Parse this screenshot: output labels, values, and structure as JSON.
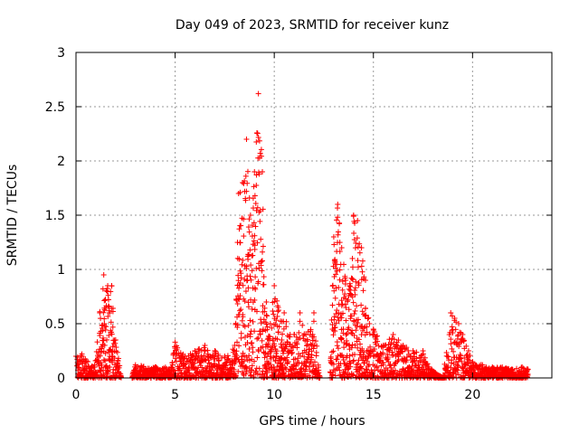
{
  "chart_data": {
    "type": "scatter",
    "title": "Day 049 of 2023, SRMTID for receiver kunz",
    "xlabel": "GPS time / hours",
    "ylabel": "SRMTID / TECUs",
    "xlim": [
      0,
      24
    ],
    "ylim": [
      0,
      3
    ],
    "xticks": [
      0,
      5,
      10,
      15,
      20
    ],
    "xtick_labels": [
      "0",
      "5",
      "10",
      "15",
      "20"
    ],
    "yticks": [
      0,
      0.5,
      1,
      1.5,
      2,
      2.5,
      3
    ],
    "ytick_labels": [
      "0",
      "0.5",
      "1",
      "1.5",
      "2",
      "2.5",
      "3"
    ],
    "grid": true,
    "marker": "+",
    "color": "#ff0000",
    "series": [
      {
        "name": "SRMTID",
        "description": "estimated envelope of plotted points (hours, TECU)",
        "envelope_x": [
          0,
          0.3,
          0.6,
          0.9,
          1.2,
          1.4,
          1.6,
          1.8,
          2.0,
          2.3,
          2.8,
          3.0,
          4.0,
          4.8,
          5.0,
          5.5,
          6.0,
          6.5,
          7.0,
          7.5,
          8.0,
          8.2,
          8.4,
          8.6,
          8.8,
          9.0,
          9.2,
          9.4,
          9.6,
          9.8,
          10.0,
          10.2,
          10.5,
          10.8,
          11.0,
          11.3,
          11.6,
          12.0,
          12.3,
          12.8,
          13.0,
          13.2,
          13.4,
          13.6,
          13.8,
          14.0,
          14.2,
          14.4,
          14.6,
          14.8,
          15.0,
          15.5,
          16.0,
          16.5,
          17.0,
          17.5,
          17.8,
          18.5,
          18.9,
          19.1,
          19.3,
          19.5,
          19.8,
          20.0,
          20.5,
          21.0,
          21.5,
          22.0,
          22.5,
          22.8
        ],
        "envelope_y": [
          0.2,
          0.22,
          0.15,
          0.1,
          0.6,
          0.95,
          0.85,
          0.85,
          0.35,
          0.0,
          0.0,
          0.12,
          0.1,
          0.1,
          0.33,
          0.2,
          0.25,
          0.3,
          0.25,
          0.2,
          0.3,
          1.7,
          1.8,
          2.2,
          1.5,
          1.9,
          2.62,
          1.9,
          0.7,
          0.5,
          0.85,
          0.65,
          0.6,
          0.4,
          0.4,
          0.6,
          0.4,
          0.6,
          0.0,
          0.0,
          1.3,
          1.6,
          1.2,
          0.9,
          0.85,
          1.5,
          1.45,
          1.2,
          0.9,
          0.5,
          0.45,
          0.3,
          0.4,
          0.3,
          0.25,
          0.25,
          0.1,
          0.0,
          0.6,
          0.55,
          0.5,
          0.4,
          0.25,
          0.15,
          0.12,
          0.1,
          0.1,
          0.08,
          0.1,
          0.08
        ]
      }
    ]
  }
}
